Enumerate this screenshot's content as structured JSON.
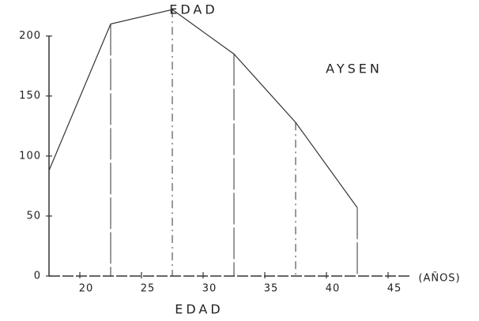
{
  "chart_data": {
    "type": "line",
    "title": "EDAD",
    "annotation": "AYSEN",
    "xlabel": "EDAD",
    "xunit": "(AÑOS)",
    "x": [
      17.5,
      22.5,
      27.5,
      32.5,
      37.5,
      42.5
    ],
    "values": [
      88,
      210,
      222,
      185,
      128,
      57
    ],
    "color": "#333333",
    "xlim": [
      17.5,
      47.5
    ],
    "ylim": [
      0,
      230
    ],
    "xticks": [
      20,
      25,
      30,
      35,
      40,
      45
    ],
    "yticks": [
      0,
      50,
      100,
      150,
      200
    ],
    "drop_lines": true
  }
}
